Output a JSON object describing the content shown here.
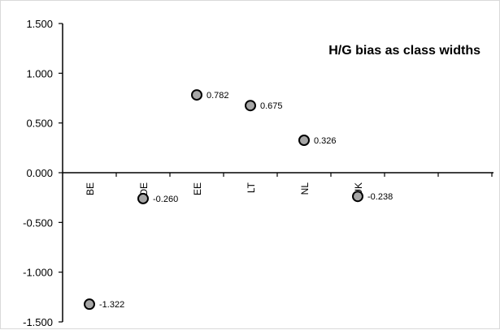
{
  "chart_data": {
    "type": "scatter",
    "title": "H/G bias as class widths",
    "xlabel": "",
    "ylabel": "",
    "categories": [
      "BE",
      "DE",
      "EE",
      "LT",
      "NL",
      "UK"
    ],
    "values": [
      -1.322,
      -0.26,
      0.782,
      0.675,
      0.326,
      -0.238
    ],
    "data_labels": [
      "-1.322",
      "-0.260",
      "0.782",
      "0.675",
      "0.326",
      "-0.238"
    ],
    "ylim": [
      -1.5,
      1.5
    ],
    "y_ticks": [
      "1.500",
      "1.000",
      "0.500",
      "0.000",
      "-0.500",
      "-1.000",
      "-1.500"
    ],
    "grid": false,
    "legend": "none",
    "colors": {
      "marker_fill": "#a6a6a6",
      "marker_stroke": "#000000"
    }
  }
}
